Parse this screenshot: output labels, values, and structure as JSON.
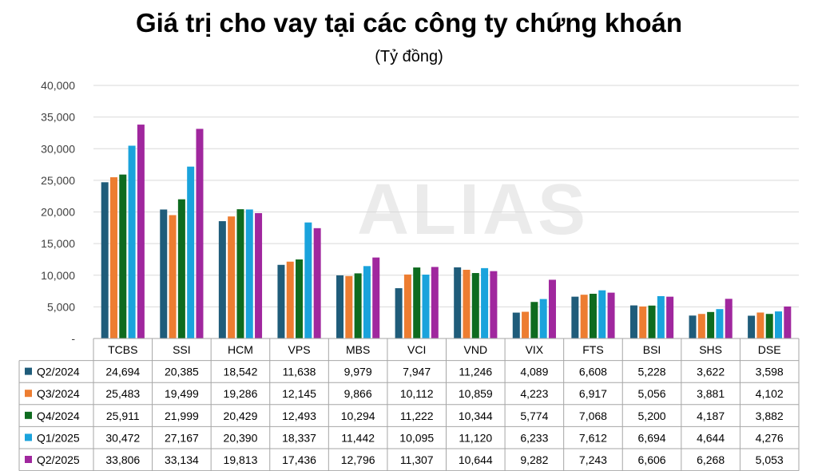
{
  "chart_data": {
    "type": "bar",
    "title": "Giá trị cho vay tại các công ty chứng khoán",
    "subtitle": "(Tỷ đồng)",
    "categories": [
      "TCBS",
      "SSI",
      "HCM",
      "VPS",
      "MBS",
      "VCI",
      "VND",
      "VIX",
      "FTS",
      "BSI",
      "SHS",
      "DSE"
    ],
    "series": [
      {
        "name": "Q2/2024",
        "color": "#1f5c7a",
        "values": [
          24694,
          20385,
          18542,
          11638,
          9979,
          7947,
          11246,
          4089,
          6608,
          5228,
          3622,
          3598
        ],
        "labels": [
          "24,694",
          "20,385",
          "18,542",
          "11,638",
          "9,979",
          "7,947",
          "11,246",
          "4,089",
          "6,608",
          "5,228",
          "3,622",
          "3,598"
        ]
      },
      {
        "name": "Q3/2024",
        "color": "#ed7d31",
        "values": [
          25483,
          19499,
          19286,
          12145,
          9866,
          10112,
          10859,
          4223,
          6917,
          5056,
          3881,
          4102
        ],
        "labels": [
          "25,483",
          "19,499",
          "19,286",
          "12,145",
          "9,866",
          "10,112",
          "10,859",
          "4,223",
          "6,917",
          "5,056",
          "3,881",
          "4,102"
        ]
      },
      {
        "name": "Q4/2024",
        "color": "#0e6b1f",
        "values": [
          25911,
          21999,
          20429,
          12493,
          10294,
          11222,
          10344,
          5774,
          7068,
          5200,
          4187,
          3882
        ],
        "labels": [
          "25,911",
          "21,999",
          "20,429",
          "12,493",
          "10,294",
          "11,222",
          "10,344",
          "5,774",
          "7,068",
          "5,200",
          "4,187",
          "3,882"
        ]
      },
      {
        "name": "Q1/2025",
        "color": "#1aa3dc",
        "values": [
          30472,
          27167,
          20390,
          18337,
          11442,
          10095,
          11120,
          6233,
          7612,
          6694,
          4644,
          4276
        ],
        "labels": [
          "30,472",
          "27,167",
          "20,390",
          "18,337",
          "11,442",
          "10,095",
          "11,120",
          "6,233",
          "7,612",
          "6,694",
          "4,644",
          "4,276"
        ]
      },
      {
        "name": "Q2/2025",
        "color": "#a0279e",
        "values": [
          33806,
          33134,
          19813,
          17436,
          12796,
          11307,
          10644,
          9282,
          7243,
          6606,
          6268,
          5053
        ],
        "labels": [
          "33,806",
          "33,134",
          "19,813",
          "17,436",
          "12,796",
          "11,307",
          "10,644",
          "9,282",
          "7,243",
          "6,606",
          "6,268",
          "5,053"
        ]
      }
    ],
    "ylim": [
      0,
      40000
    ],
    "yticks": [
      0,
      5000,
      10000,
      15000,
      20000,
      25000,
      30000,
      35000,
      40000
    ],
    "ytick_labels": [
      "-",
      "5,000",
      "10,000",
      "15,000",
      "20,000",
      "25,000",
      "30,000",
      "35,000",
      "40,000"
    ],
    "grid": true,
    "legend": "data-table"
  },
  "watermark": "ALIAS"
}
